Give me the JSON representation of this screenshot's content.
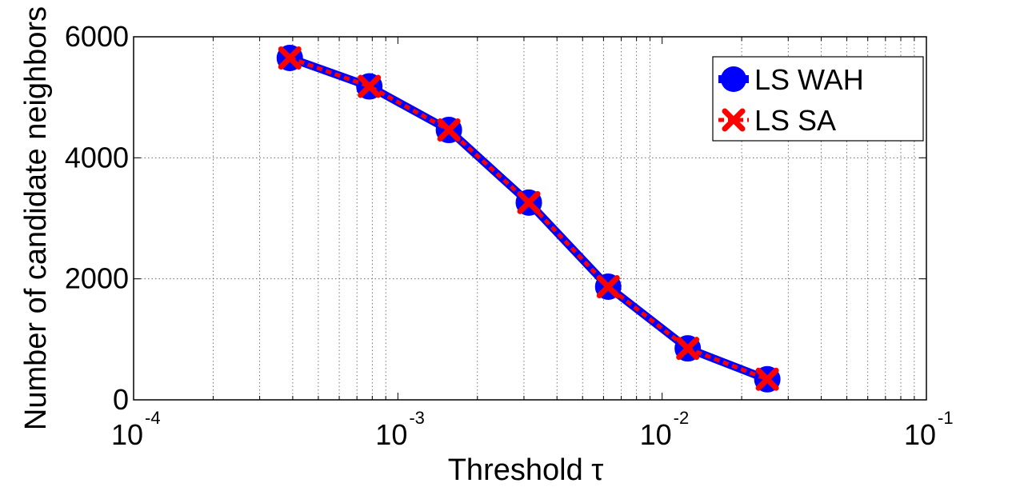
{
  "chart_data": {
    "type": "line",
    "xscale": "log",
    "xlim": [
      0.0001,
      0.1
    ],
    "ylim": [
      0,
      6000
    ],
    "grid": true,
    "xlabel": "Threshold τ",
    "ylabel": "Number of candidate neighbors",
    "x_ticks": [
      {
        "value": 0.0001,
        "base": "10",
        "exp": "-4"
      },
      {
        "value": 0.001,
        "base": "10",
        "exp": "-3"
      },
      {
        "value": 0.01,
        "base": "10",
        "exp": "-2"
      },
      {
        "value": 0.1,
        "base": "10",
        "exp": "-1"
      }
    ],
    "y_ticks": [
      {
        "value": 0,
        "label": "0"
      },
      {
        "value": 2000,
        "label": "2000"
      },
      {
        "value": 4000,
        "label": "4000"
      },
      {
        "value": 6000,
        "label": "6000"
      }
    ],
    "x": [
      0.00039,
      0.00078,
      0.00156,
      0.00313,
      0.00625,
      0.0125,
      0.025
    ],
    "series": [
      {
        "name": "LS WAH",
        "values": [
          5650,
          5180,
          4460,
          3260,
          1870,
          850,
          340
        ],
        "color": "#0000ff",
        "marker": "circle"
      },
      {
        "name": "LS SA",
        "values": [
          5650,
          5180,
          4460,
          3260,
          1870,
          850,
          340
        ],
        "color": "#ff0000",
        "marker": "x",
        "linestyle": "dashed"
      }
    ],
    "legend_position": "top-right"
  }
}
